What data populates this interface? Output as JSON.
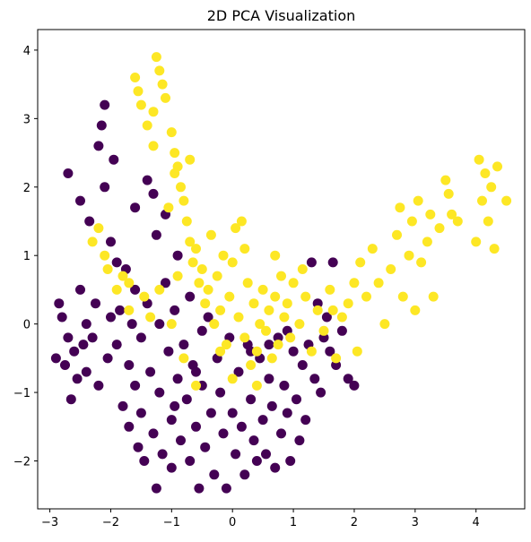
{
  "chart_data": {
    "type": "scatter",
    "title": "2D PCA Visualization",
    "xlabel": "",
    "ylabel": "",
    "xlim": [
      -3.2,
      4.8
    ],
    "ylim": [
      -2.7,
      4.3
    ],
    "x_ticks": [
      -3,
      -2,
      -1,
      0,
      1,
      2,
      3,
      4
    ],
    "y_ticks": [
      -2,
      -1,
      0,
      1,
      2,
      3,
      4
    ],
    "grid": false,
    "legend": "none",
    "colors": {
      "class_0": "#440154",
      "class_1": "#fde725"
    },
    "series": [
      {
        "color": "#440154",
        "points": [
          [
            -2.9,
            -0.5
          ],
          [
            -2.85,
            0.3
          ],
          [
            -2.8,
            0.1
          ],
          [
            -2.75,
            -0.6
          ],
          [
            -2.7,
            -0.2
          ],
          [
            -2.7,
            2.2
          ],
          [
            -2.65,
            -1.1
          ],
          [
            -2.6,
            -0.4
          ],
          [
            -2.55,
            -0.8
          ],
          [
            -2.5,
            0.5
          ],
          [
            -2.5,
            1.8
          ],
          [
            -2.45,
            -0.3
          ],
          [
            -2.4,
            0.0
          ],
          [
            -2.4,
            -0.7
          ],
          [
            -2.35,
            1.5
          ],
          [
            -2.3,
            -0.2
          ],
          [
            -2.25,
            0.3
          ],
          [
            -2.2,
            -0.9
          ],
          [
            -2.2,
            2.6
          ],
          [
            -2.15,
            2.9
          ],
          [
            -2.1,
            3.2
          ],
          [
            -2.1,
            2.0
          ],
          [
            -2.05,
            -0.5
          ],
          [
            -2.0,
            0.1
          ],
          [
            -2.0,
            1.2
          ],
          [
            -1.95,
            2.4
          ],
          [
            -1.9,
            -0.3
          ],
          [
            -1.85,
            0.2
          ],
          [
            -1.8,
            -1.2
          ],
          [
            -1.75,
            0.8
          ],
          [
            -1.7,
            -0.6
          ],
          [
            -1.7,
            -1.5
          ],
          [
            -1.65,
            0.0
          ],
          [
            -1.6,
            -0.9
          ],
          [
            -1.6,
            0.5
          ],
          [
            -1.55,
            -1.8
          ],
          [
            -1.5,
            -0.2
          ],
          [
            -1.5,
            -1.3
          ],
          [
            -1.45,
            -2.0
          ],
          [
            -1.4,
            2.1
          ],
          [
            -1.4,
            0.3
          ],
          [
            -1.35,
            -0.7
          ],
          [
            -1.3,
            -1.6
          ],
          [
            -1.3,
            1.9
          ],
          [
            -1.25,
            -2.4
          ],
          [
            -1.2,
            0.0
          ],
          [
            -1.2,
            -1.0
          ],
          [
            -1.15,
            -1.9
          ],
          [
            -1.1,
            1.6
          ],
          [
            -1.1,
            0.6
          ],
          [
            -1.05,
            -0.4
          ],
          [
            -1.0,
            -1.4
          ],
          [
            -1.0,
            -2.1
          ],
          [
            -0.95,
            0.2
          ],
          [
            -0.9,
            -0.8
          ],
          [
            -0.9,
            1.0
          ],
          [
            -0.85,
            -1.7
          ],
          [
            -0.8,
            -0.3
          ],
          [
            -0.75,
            -1.1
          ],
          [
            -0.7,
            -2.0
          ],
          [
            -0.7,
            0.4
          ],
          [
            -0.65,
            -0.6
          ],
          [
            -0.6,
            -1.5
          ],
          [
            -0.55,
            -2.4
          ],
          [
            -0.5,
            -0.1
          ],
          [
            -0.5,
            -0.9
          ],
          [
            -0.45,
            -1.8
          ],
          [
            -0.4,
            0.1
          ],
          [
            -0.35,
            -1.3
          ],
          [
            -0.3,
            -2.2
          ],
          [
            -0.25,
            -0.5
          ],
          [
            -0.2,
            -1.0
          ],
          [
            -0.15,
            -1.6
          ],
          [
            -0.1,
            -2.4
          ],
          [
            -0.05,
            -0.2
          ],
          [
            0.0,
            -1.3
          ],
          [
            0.05,
            -1.9
          ],
          [
            0.1,
            -0.7
          ],
          [
            0.15,
            -1.5
          ],
          [
            0.2,
            -2.2
          ],
          [
            0.25,
            -0.3
          ],
          [
            0.3,
            -1.1
          ],
          [
            0.35,
            -1.7
          ],
          [
            0.4,
            -2.0
          ],
          [
            0.45,
            -0.5
          ],
          [
            0.5,
            -1.4
          ],
          [
            0.55,
            -1.9
          ],
          [
            0.6,
            -0.8
          ],
          [
            0.65,
            -1.2
          ],
          [
            0.7,
            -2.1
          ],
          [
            0.75,
            -0.2
          ],
          [
            0.8,
            -1.6
          ],
          [
            0.85,
            -0.9
          ],
          [
            0.9,
            -1.3
          ],
          [
            0.95,
            -2.0
          ],
          [
            1.0,
            -0.4
          ],
          [
            1.05,
            -1.1
          ],
          [
            1.1,
            -1.7
          ],
          [
            1.15,
            -0.6
          ],
          [
            1.2,
            -1.4
          ],
          [
            1.3,
            0.9
          ],
          [
            1.35,
            -0.8
          ],
          [
            1.4,
            0.3
          ],
          [
            1.45,
            -1.0
          ],
          [
            1.5,
            -0.2
          ],
          [
            1.55,
            0.1
          ],
          [
            1.6,
            -0.4
          ],
          [
            1.65,
            0.9
          ],
          [
            1.7,
            -0.6
          ],
          [
            1.8,
            -0.1
          ],
          [
            1.9,
            -0.8
          ],
          [
            2.0,
            -0.9
          ],
          [
            -0.6,
            -0.7
          ],
          [
            0.3,
            -0.4
          ],
          [
            -1.9,
            0.9
          ],
          [
            -1.6,
            1.7
          ],
          [
            -1.25,
            1.3
          ],
          [
            -0.95,
            -1.2
          ],
          [
            0.6,
            -0.3
          ],
          [
            0.9,
            -0.1
          ],
          [
            1.25,
            -0.3
          ]
        ]
      },
      {
        "color": "#fde725",
        "points": [
          [
            -2.3,
            1.2
          ],
          [
            -2.2,
            1.4
          ],
          [
            -2.1,
            1.0
          ],
          [
            -2.05,
            0.8
          ],
          [
            -1.9,
            0.5
          ],
          [
            -1.8,
            0.7
          ],
          [
            -1.7,
            0.2
          ],
          [
            -1.6,
            3.6
          ],
          [
            -1.55,
            3.4
          ],
          [
            -1.5,
            3.2
          ],
          [
            -1.45,
            0.4
          ],
          [
            -1.4,
            2.9
          ],
          [
            -1.3,
            3.1
          ],
          [
            -1.25,
            3.9
          ],
          [
            -1.2,
            3.7
          ],
          [
            -1.15,
            3.5
          ],
          [
            -1.1,
            3.3
          ],
          [
            -1.0,
            2.8
          ],
          [
            -0.95,
            2.5
          ],
          [
            -0.9,
            2.3
          ],
          [
            -0.85,
            2.0
          ],
          [
            -0.8,
            1.8
          ],
          [
            -0.75,
            1.5
          ],
          [
            -0.7,
            1.2
          ],
          [
            -0.65,
            0.9
          ],
          [
            -0.6,
            1.1
          ],
          [
            -0.55,
            0.6
          ],
          [
            -0.5,
            0.8
          ],
          [
            -0.45,
            0.3
          ],
          [
            -0.4,
            0.5
          ],
          [
            -0.35,
            1.3
          ],
          [
            -0.3,
            0.0
          ],
          [
            -0.25,
            0.7
          ],
          [
            -0.2,
            0.2
          ],
          [
            -0.15,
            1.0
          ],
          [
            -0.1,
            -0.3
          ],
          [
            -0.05,
            0.4
          ],
          [
            0.0,
            0.9
          ],
          [
            0.05,
            1.4
          ],
          [
            0.1,
            0.1
          ],
          [
            0.15,
            1.5
          ],
          [
            0.2,
            -0.2
          ],
          [
            0.25,
            0.6
          ],
          [
            0.3,
            -0.6
          ],
          [
            0.35,
            0.3
          ],
          [
            0.4,
            -0.4
          ],
          [
            0.45,
            0.0
          ],
          [
            0.5,
            0.5
          ],
          [
            0.55,
            -0.1
          ],
          [
            0.6,
            0.2
          ],
          [
            0.65,
            -0.5
          ],
          [
            0.7,
            0.4
          ],
          [
            0.75,
            -0.3
          ],
          [
            0.8,
            0.7
          ],
          [
            0.85,
            0.1
          ],
          [
            0.9,
            0.3
          ],
          [
            0.95,
            -0.2
          ],
          [
            1.0,
            0.6
          ],
          [
            1.1,
            0.0
          ],
          [
            1.2,
            0.4
          ],
          [
            1.3,
            -0.4
          ],
          [
            1.4,
            0.2
          ],
          [
            1.5,
            -0.1
          ],
          [
            1.6,
            0.5
          ],
          [
            1.7,
            -0.5
          ],
          [
            1.8,
            0.1
          ],
          [
            1.9,
            0.3
          ],
          [
            2.0,
            0.6
          ],
          [
            2.05,
            -0.4
          ],
          [
            2.1,
            0.9
          ],
          [
            2.2,
            0.4
          ],
          [
            2.3,
            1.1
          ],
          [
            2.4,
            0.6
          ],
          [
            2.5,
            0.0
          ],
          [
            2.6,
            0.8
          ],
          [
            2.7,
            1.3
          ],
          [
            2.75,
            1.7
          ],
          [
            2.8,
            0.4
          ],
          [
            2.9,
            1.0
          ],
          [
            2.95,
            1.5
          ],
          [
            3.0,
            0.2
          ],
          [
            3.05,
            1.8
          ],
          [
            3.1,
            0.9
          ],
          [
            3.2,
            1.2
          ],
          [
            3.25,
            1.6
          ],
          [
            3.3,
            0.4
          ],
          [
            3.4,
            1.4
          ],
          [
            3.5,
            2.1
          ],
          [
            3.55,
            1.9
          ],
          [
            3.6,
            1.6
          ],
          [
            3.7,
            1.5
          ],
          [
            4.0,
            1.2
          ],
          [
            4.05,
            2.4
          ],
          [
            4.1,
            1.8
          ],
          [
            4.15,
            2.2
          ],
          [
            4.2,
            1.5
          ],
          [
            4.25,
            2.0
          ],
          [
            4.3,
            1.1
          ],
          [
            4.35,
            2.3
          ],
          [
            4.5,
            1.8
          ],
          [
            -1.35,
            0.1
          ],
          [
            -1.0,
            0.0
          ],
          [
            -0.8,
            -0.5
          ],
          [
            -0.6,
            -0.9
          ],
          [
            0.0,
            -0.8
          ],
          [
            0.4,
            -0.9
          ],
          [
            -0.2,
            -0.4
          ],
          [
            -1.7,
            0.6
          ],
          [
            -0.9,
            0.7
          ],
          [
            0.2,
            1.1
          ],
          [
            0.7,
            1.0
          ],
          [
            1.15,
            0.8
          ],
          [
            1.65,
            0.2
          ],
          [
            -1.2,
            0.5
          ],
          [
            -1.05,
            1.7
          ],
          [
            -0.7,
            2.4
          ],
          [
            -1.3,
            2.6
          ],
          [
            -0.95,
            2.2
          ]
        ]
      }
    ]
  }
}
